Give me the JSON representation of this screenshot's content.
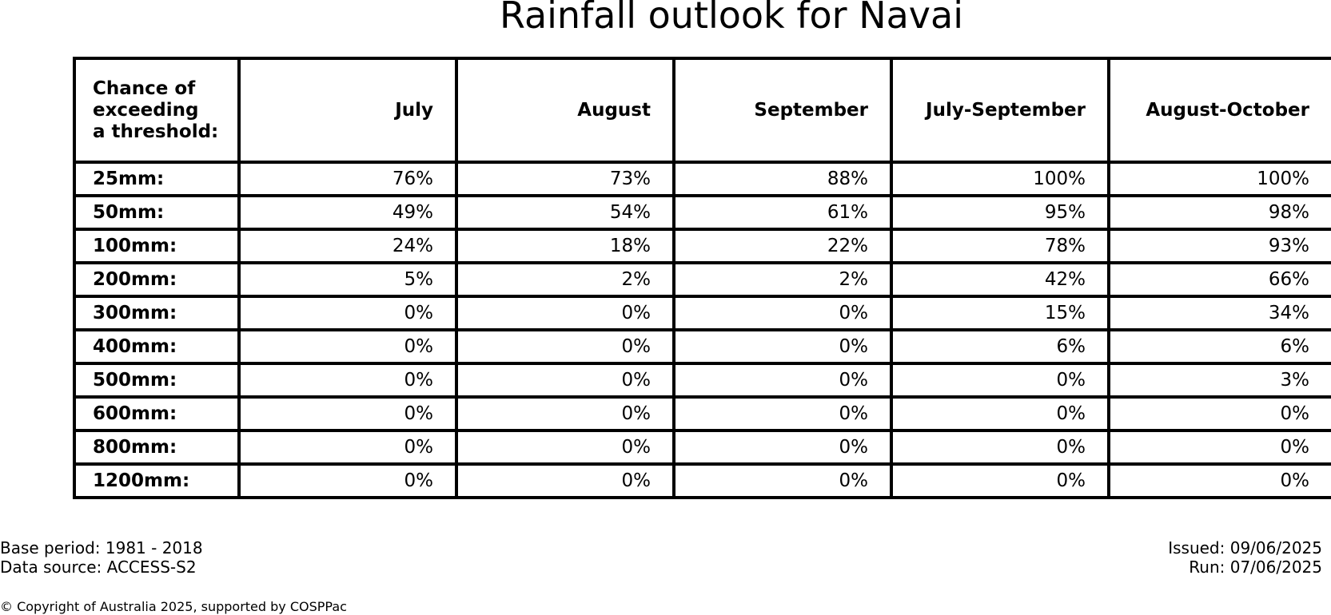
{
  "title": "Rainfall outlook for Navai",
  "chart_data": {
    "type": "table",
    "title": "Rainfall outlook for Navai",
    "header": {
      "corner": [
        "Chance of",
        "exceeding",
        "a threshold:"
      ],
      "columns": [
        "July",
        "August",
        "September",
        "July-September",
        "August-October"
      ]
    },
    "rows": [
      {
        "label": "25mm:",
        "values": [
          "76%",
          "73%",
          "88%",
          "100%",
          "100%"
        ]
      },
      {
        "label": "50mm:",
        "values": [
          "49%",
          "54%",
          "61%",
          "95%",
          "98%"
        ]
      },
      {
        "label": "100mm:",
        "values": [
          "24%",
          "18%",
          "22%",
          "78%",
          "93%"
        ]
      },
      {
        "label": "200mm:",
        "values": [
          "5%",
          "2%",
          "2%",
          "42%",
          "66%"
        ]
      },
      {
        "label": "300mm:",
        "values": [
          "0%",
          "0%",
          "0%",
          "15%",
          "34%"
        ]
      },
      {
        "label": "400mm:",
        "values": [
          "0%",
          "0%",
          "0%",
          "6%",
          "6%"
        ]
      },
      {
        "label": "500mm:",
        "values": [
          "0%",
          "0%",
          "0%",
          "0%",
          "3%"
        ]
      },
      {
        "label": "600mm:",
        "values": [
          "0%",
          "0%",
          "0%",
          "0%",
          "0%"
        ]
      },
      {
        "label": "800mm:",
        "values": [
          "0%",
          "0%",
          "0%",
          "0%",
          "0%"
        ]
      },
      {
        "label": "1200mm:",
        "values": [
          "0%",
          "0%",
          "0%",
          "0%",
          "0%"
        ]
      }
    ]
  },
  "footer": {
    "base_period": "Base period: 1981 - 2018",
    "data_source": "Data source: ACCESS-S2",
    "issued": "Issued: 09/06/2025",
    "run": "Run: 07/06/2025",
    "copyright": "© Copyright of Australia 2025, supported by COSPPac"
  }
}
